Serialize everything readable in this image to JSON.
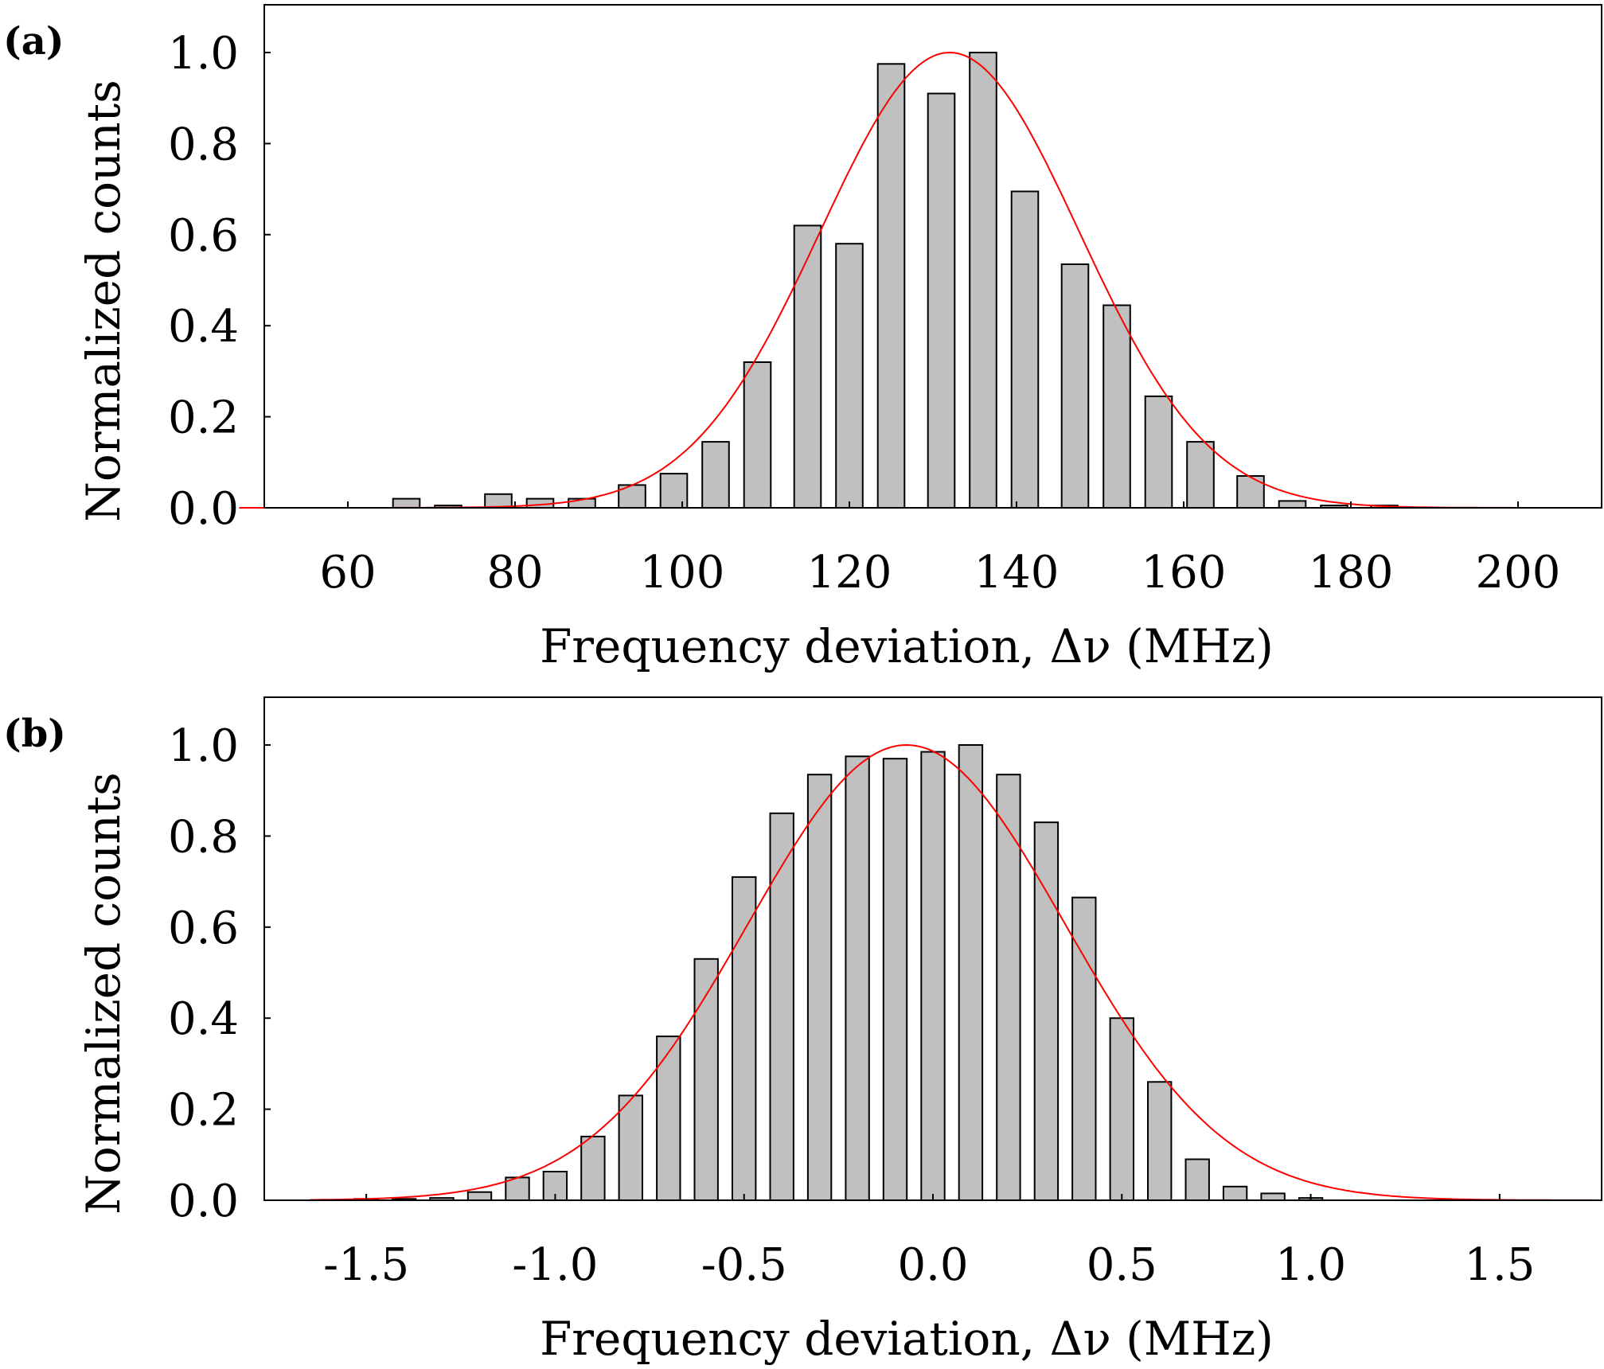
{
  "chart_data": [
    {
      "type": "bar",
      "panel_label": "(a)",
      "xlabel": "Frequency deviation, Δν (MHz)",
      "ylabel": "Normalized counts",
      "xlim": [
        50,
        210
      ],
      "ylim": [
        0,
        1.1
      ],
      "xticks": [
        60,
        80,
        100,
        120,
        140,
        160,
        180,
        200
      ],
      "xtick_labels": [
        "60",
        "80",
        "100",
        "120",
        "140",
        "160",
        "180",
        "200"
      ],
      "yticks": [
        0,
        0.2,
        0.4,
        0.6,
        0.8,
        1.0
      ],
      "ytick_labels": [
        "0.0",
        "0.2",
        "0.4",
        "0.6",
        "0.8",
        "1.0"
      ],
      "bar_width": 3.2,
      "x": [
        67,
        72,
        78,
        83,
        88,
        94,
        99,
        104,
        109,
        115,
        120,
        125,
        131,
        136,
        141,
        147,
        152,
        157,
        162,
        168,
        173,
        178,
        184
      ],
      "values": [
        0.02,
        0.005,
        0.03,
        0.02,
        0.02,
        0.05,
        0.075,
        0.145,
        0.32,
        0.62,
        0.58,
        0.975,
        0.91,
        1.0,
        0.695,
        0.535,
        0.445,
        0.245,
        0.145,
        0.07,
        0.015,
        0.005,
        0.005
      ],
      "fit": {
        "type": "gaussian",
        "center": 132,
        "sigma": 15.5,
        "amplitude": 1.0,
        "x_start": 47,
        "x_end": 210,
        "color": "#ff0000"
      }
    },
    {
      "type": "bar",
      "panel_label": "(b)",
      "xlabel": "Frequency deviation, Δν (MHz)",
      "ylabel": "Normalized counts",
      "xlim": [
        -1.77,
        1.77
      ],
      "ylim": [
        0,
        1.1
      ],
      "xticks": [
        -1.5,
        -1.0,
        -0.5,
        0.0,
        0.5,
        1.0,
        1.5
      ],
      "xtick_labels": [
        "-1.5",
        "-1.0",
        "-0.5",
        "0.0",
        "0.5",
        "1.0",
        "1.5"
      ],
      "yticks": [
        0,
        0.2,
        0.4,
        0.6,
        0.8,
        1.0
      ],
      "ytick_labels": [
        "0.0",
        "0.2",
        "0.4",
        "0.6",
        "0.8",
        "1.0"
      ],
      "bar_width": 0.062,
      "x": [
        -1.5,
        -1.4,
        -1.3,
        -1.2,
        -1.1,
        -1.0,
        -0.9,
        -0.8,
        -0.7,
        -0.6,
        -0.5,
        -0.4,
        -0.3,
        -0.2,
        -0.1,
        0.0,
        0.1,
        0.2,
        0.3,
        0.4,
        0.5,
        0.6,
        0.7,
        0.8,
        0.9,
        1.0
      ],
      "values": [
        0.003,
        0.003,
        0.005,
        0.018,
        0.05,
        0.063,
        0.14,
        0.23,
        0.36,
        0.53,
        0.71,
        0.85,
        0.935,
        0.975,
        0.97,
        0.985,
        1.0,
        0.935,
        0.83,
        0.665,
        0.4,
        0.26,
        0.09,
        0.03,
        0.015,
        0.005
      ],
      "fit": {
        "type": "gaussian",
        "center": -0.07,
        "sigma": 0.42,
        "amplitude": 1.0,
        "x_start": -1.65,
        "x_end": 1.77,
        "color": "#ff0000"
      }
    }
  ]
}
